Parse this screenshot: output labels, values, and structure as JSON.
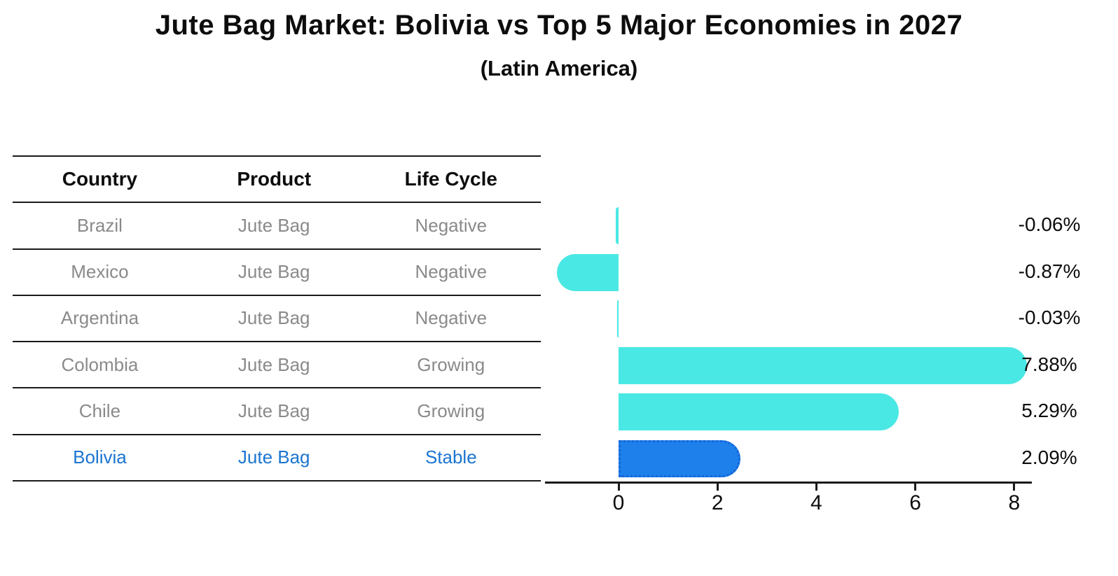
{
  "title": "Jute Bag Market: Bolivia vs Top 5 Major Economies in 2027",
  "subtitle": "(Latin America)",
  "table": {
    "headers": [
      "Country",
      "Product",
      "Life Cycle"
    ],
    "rows": [
      {
        "country": "Brazil",
        "product": "Jute Bag",
        "life_cycle": "Negative",
        "highlighted": false
      },
      {
        "country": "Mexico",
        "product": "Jute Bag",
        "life_cycle": "Negative",
        "highlighted": false
      },
      {
        "country": "Argentina",
        "product": "Jute Bag",
        "life_cycle": "Negative",
        "highlighted": false
      },
      {
        "country": "Colombia",
        "product": "Jute Bag",
        "life_cycle": "Growing",
        "highlighted": false
      },
      {
        "country": "Chile",
        "product": "Jute Bag",
        "life_cycle": "Growing",
        "highlighted": false
      },
      {
        "country": "Bolivia",
        "product": "Jute Bag",
        "life_cycle": "Stable",
        "highlighted": true
      }
    ]
  },
  "chart_data": {
    "type": "bar",
    "orientation": "horizontal",
    "title": "Jute Bag Market: Bolivia vs Top 5 Major Economies in 2027",
    "subtitle": "(Latin America)",
    "categories": [
      "Brazil",
      "Mexico",
      "Argentina",
      "Colombia",
      "Chile",
      "Bolivia"
    ],
    "values": [
      -0.06,
      -0.87,
      -0.03,
      7.88,
      5.29,
      2.09
    ],
    "value_labels": [
      "-0.06%",
      "-0.87%",
      "-0.03%",
      "7.88%",
      "5.29%",
      "2.09%"
    ],
    "x_ticks": [
      0,
      2,
      4,
      6,
      8
    ],
    "xlim": [
      -1.5,
      8.35
    ],
    "grid": false,
    "legend": false,
    "highlight_index": 5
  },
  "colors": {
    "bar_color": "#4AE8E4",
    "highlight_bar_color": "#1E80EB",
    "highlight_border_color": "#1565d8",
    "highlight_text_color": "#1b75d1",
    "muted_text_color": "#8a8a8a",
    "line_color": "#1a1a1a",
    "background": "#ffffff"
  }
}
